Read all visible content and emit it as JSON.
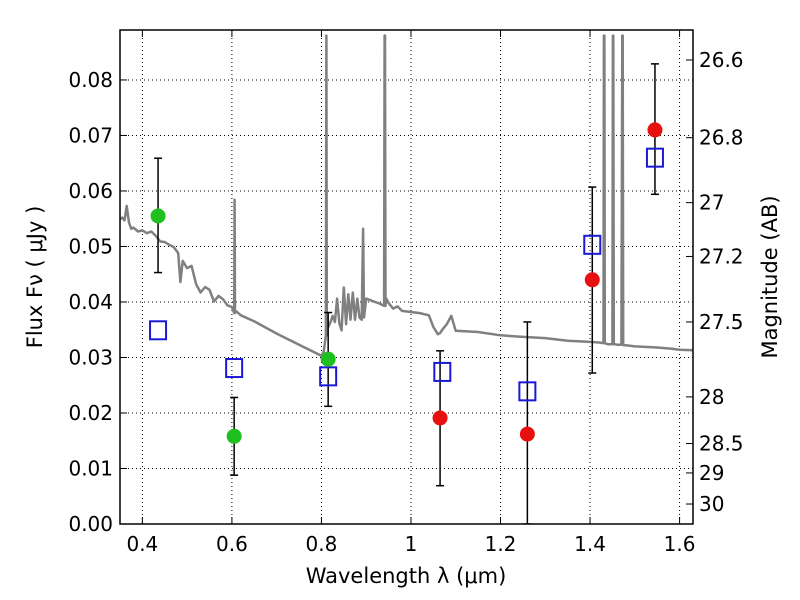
{
  "chart_data": {
    "type": "scatter",
    "title": "",
    "xlabel": "Wavelength  λ (μm)",
    "ylabel": "Flux  Fν  ( μJy )",
    "ylabel_right": "Magnitude (AB)",
    "xlim": [
      0.35,
      1.63
    ],
    "ylim": [
      0.0,
      0.089
    ],
    "grid": true,
    "x_ticks": [
      0.4,
      0.6,
      0.8,
      1.0,
      1.2,
      1.4,
      1.6
    ],
    "x_tick_labels": [
      "0.4",
      "0.6",
      "0.8",
      "1",
      "1.2",
      "1.4",
      "1.6"
    ],
    "y_ticks": [
      0.0,
      0.01,
      0.02,
      0.03,
      0.04,
      0.05,
      0.06,
      0.07,
      0.08
    ],
    "y_tick_labels": [
      "0.00",
      "0.01",
      "0.02",
      "0.03",
      "0.04",
      "0.05",
      "0.06",
      "0.07",
      "0.08"
    ],
    "right_ticks": [
      {
        "label": "26.6",
        "flux": 0.0836
      },
      {
        "label": "26.8",
        "flux": 0.0696
      },
      {
        "label": "27",
        "flux": 0.0579
      },
      {
        "label": "27.2",
        "flux": 0.0482
      },
      {
        "label": "27.5",
        "flux": 0.0364
      },
      {
        "label": "28",
        "flux": 0.0229
      },
      {
        "label": "28.5",
        "flux": 0.0145
      },
      {
        "label": "29",
        "flux": 0.0092
      },
      {
        "label": "30",
        "flux": 0.0036
      }
    ],
    "colors": {
      "green": "#1fbf1f",
      "red": "#e8100f",
      "blue_square": "#1a1ad6",
      "errorbar": "#000000",
      "model": "#808080"
    },
    "series": [
      {
        "marker": "circle-green",
        "points": [
          {
            "x": 0.435,
            "y": 0.0555,
            "err_low": 0.0453,
            "err_high": 0.0659
          },
          {
            "x": 0.605,
            "y": 0.0158,
            "err_low": 0.0088,
            "err_high": 0.0228
          },
          {
            "x": 0.815,
            "y": 0.0297,
            "err_low": 0.0212,
            "err_high": 0.0381
          }
        ]
      },
      {
        "marker": "circle-red",
        "points": [
          {
            "x": 1.065,
            "y": 0.0191,
            "err_low": 0.0069,
            "err_high": 0.0312
          },
          {
            "x": 1.26,
            "y": 0.0162,
            "err_low": 0.0,
            "err_high": 0.0364
          },
          {
            "x": 1.405,
            "y": 0.044,
            "err_low": 0.0272,
            "err_high": 0.0607
          },
          {
            "x": 1.545,
            "y": 0.071,
            "err_low": 0.0594,
            "err_high": 0.0829
          }
        ]
      },
      {
        "marker": "square-open-blue",
        "points": [
          {
            "x": 0.435,
            "y": 0.0349
          },
          {
            "x": 0.605,
            "y": 0.0281
          },
          {
            "x": 0.815,
            "y": 0.0266
          },
          {
            "x": 1.07,
            "y": 0.0274
          },
          {
            "x": 1.26,
            "y": 0.0239
          },
          {
            "x": 1.405,
            "y": 0.0503
          },
          {
            "x": 1.545,
            "y": 0.066
          }
        ]
      },
      {
        "marker": "line-model",
        "x": [
          0.35,
          0.355,
          0.36,
          0.365,
          0.37,
          0.375,
          0.38,
          0.39,
          0.4,
          0.41,
          0.42,
          0.43,
          0.44,
          0.45,
          0.46,
          0.47,
          0.48,
          0.485,
          0.49,
          0.5,
          0.51,
          0.52,
          0.53,
          0.54,
          0.55,
          0.56,
          0.57,
          0.58,
          0.59,
          0.6,
          0.605,
          0.606,
          0.607,
          0.608,
          0.61,
          0.62,
          0.65,
          0.7,
          0.75,
          0.78,
          0.8,
          0.805,
          0.81,
          0.811,
          0.812,
          0.813,
          0.815,
          0.82,
          0.825,
          0.83,
          0.835,
          0.84,
          0.845,
          0.85,
          0.855,
          0.86,
          0.865,
          0.87,
          0.875,
          0.88,
          0.885,
          0.89,
          0.893,
          0.895,
          0.9,
          0.91,
          0.92,
          0.93,
          0.94,
          0.941,
          0.942,
          0.943,
          0.945,
          0.95,
          0.96,
          0.97,
          0.98,
          1.0,
          1.02,
          1.04,
          1.05,
          1.06,
          1.065,
          1.07,
          1.08,
          1.09,
          1.1,
          1.15,
          1.2,
          1.25,
          1.3,
          1.35,
          1.4,
          1.42,
          1.43,
          1.431,
          1.432,
          1.433,
          1.435,
          1.44,
          1.45,
          1.451,
          1.452,
          1.453,
          1.455,
          1.46,
          1.47,
          1.472,
          1.473,
          1.474,
          1.475,
          1.48,
          1.5,
          1.55,
          1.58,
          1.6,
          1.63
        ],
        "y": [
          0.0549,
          0.0552,
          0.0547,
          0.0573,
          0.0543,
          0.0532,
          0.0534,
          0.0527,
          0.0529,
          0.0524,
          0.0527,
          0.0519,
          0.0509,
          0.0508,
          0.0503,
          0.0499,
          0.0488,
          0.0436,
          0.0474,
          0.0461,
          0.0465,
          0.0432,
          0.0417,
          0.0427,
          0.0422,
          0.0401,
          0.0411,
          0.0405,
          0.0394,
          0.0391,
          0.038,
          0.0584,
          0.038,
          0.0383,
          0.0383,
          0.0376,
          0.0365,
          0.0343,
          0.0323,
          0.0311,
          0.0303,
          0.031,
          0.034,
          0.088,
          0.034,
          0.0368,
          0.0355,
          0.0363,
          0.0375,
          0.0364,
          0.0406,
          0.0361,
          0.0349,
          0.0426,
          0.036,
          0.0414,
          0.0368,
          0.0417,
          0.0368,
          0.0406,
          0.0372,
          0.0368,
          0.0532,
          0.0372,
          0.0406,
          0.0403,
          0.04,
          0.0397,
          0.0393,
          0.088,
          0.088,
          0.0393,
          0.0406,
          0.0398,
          0.0388,
          0.0392,
          0.0384,
          0.0382,
          0.038,
          0.0376,
          0.0355,
          0.0342,
          0.0344,
          0.035,
          0.036,
          0.0375,
          0.0348,
          0.0346,
          0.034,
          0.0337,
          0.0335,
          0.033,
          0.0328,
          0.0327,
          0.0326,
          0.088,
          0.088,
          0.0326,
          0.0325,
          0.0324,
          0.0324,
          0.088,
          0.088,
          0.0324,
          0.0324,
          0.0323,
          0.0323,
          0.088,
          0.088,
          0.0325,
          0.0322,
          0.0322,
          0.032,
          0.0318,
          0.0316,
          0.0314,
          0.0313
        ]
      }
    ]
  }
}
